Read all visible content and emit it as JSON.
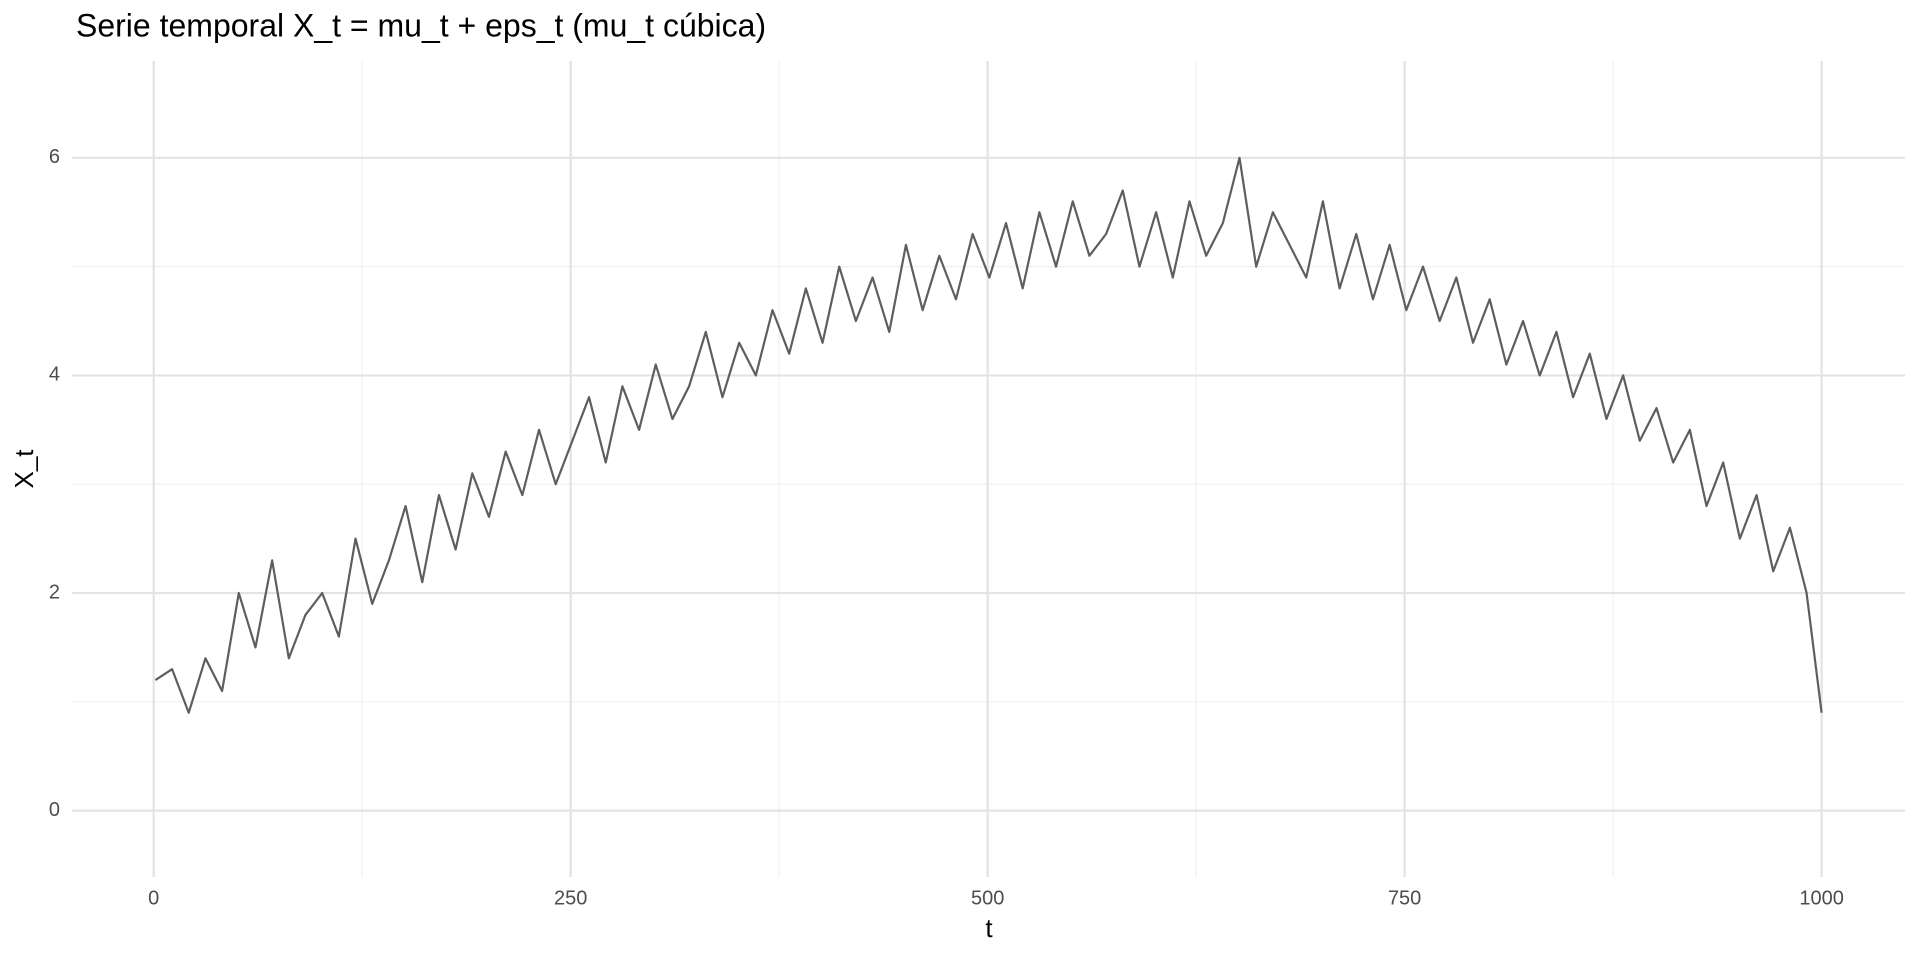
{
  "chart_data": {
    "type": "line",
    "title": "Serie temporal X_t = mu_t + eps_t (mu_t cúbica)",
    "xlabel": "t",
    "ylabel": "X_t",
    "x": [
      1,
      11,
      21,
      31,
      41,
      51,
      61,
      71,
      81,
      91,
      101,
      111,
      121,
      131,
      141,
      151,
      161,
      171,
      181,
      191,
      201,
      211,
      221,
      231,
      241,
      251,
      261,
      271,
      281,
      291,
      301,
      311,
      321,
      331,
      341,
      351,
      361,
      371,
      381,
      391,
      401,
      411,
      421,
      431,
      441,
      451,
      461,
      471,
      481,
      491,
      501,
      511,
      521,
      531,
      541,
      551,
      561,
      571,
      581,
      591,
      601,
      611,
      621,
      631,
      641,
      651,
      661,
      671,
      681,
      691,
      701,
      711,
      721,
      731,
      741,
      751,
      761,
      771,
      781,
      791,
      801,
      811,
      821,
      831,
      841,
      851,
      861,
      871,
      881,
      891,
      901,
      911,
      921,
      931,
      941,
      951,
      961,
      971,
      981,
      991,
      1000
    ],
    "series": [
      {
        "name": "X_t",
        "color": "#5e5e5e",
        "values": [
          1.2,
          1.3,
          0.9,
          1.4,
          1.1,
          2.0,
          1.5,
          2.3,
          1.4,
          1.8,
          2.0,
          1.6,
          2.5,
          1.9,
          2.3,
          2.8,
          2.1,
          2.9,
          2.4,
          3.1,
          2.7,
          3.3,
          2.9,
          3.5,
          3.0,
          3.4,
          3.8,
          3.2,
          3.9,
          3.5,
          4.1,
          3.6,
          3.9,
          4.4,
          3.8,
          4.3,
          4.0,
          4.6,
          4.2,
          4.8,
          4.3,
          5.0,
          4.5,
          4.9,
          4.4,
          5.2,
          4.6,
          5.1,
          4.7,
          5.3,
          4.9,
          5.4,
          4.8,
          5.5,
          5.0,
          5.6,
          5.1,
          5.3,
          5.7,
          5.0,
          5.5,
          4.9,
          5.6,
          5.1,
          5.4,
          6.0,
          5.0,
          5.5,
          5.2,
          4.9,
          5.6,
          4.8,
          5.3,
          4.7,
          5.2,
          4.6,
          5.0,
          4.5,
          4.9,
          4.3,
          4.7,
          4.1,
          4.5,
          4.0,
          4.4,
          3.8,
          4.2,
          3.6,
          4.0,
          3.4,
          3.7,
          3.2,
          3.5,
          2.8,
          3.2,
          2.5,
          2.9,
          2.2,
          2.6,
          2.0,
          0.9
        ]
      }
    ],
    "xlim": [
      -49,
      1050
    ],
    "ylim": [
      -0.61,
      6.89
    ],
    "xticks": [
      0,
      250,
      500,
      750,
      1000
    ],
    "yticks": [
      0,
      2,
      4,
      6
    ],
    "xminor": [
      125,
      375,
      625,
      875
    ],
    "yminor": [
      1,
      3,
      5
    ],
    "grid": true
  }
}
